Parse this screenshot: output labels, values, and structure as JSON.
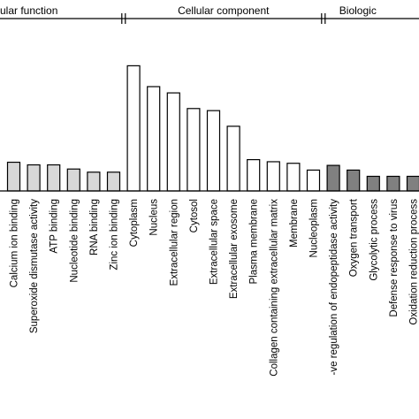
{
  "chart_data": {
    "type": "bar",
    "groups": [
      {
        "name": "ular function",
        "fill": "#d8d8d8",
        "categories": [
          "Calcium ion binding",
          "Superoxide dismutase activity",
          "ATP binding",
          "Nucleotide binding",
          "RNA binding",
          "Zinc ion binding"
        ],
        "values": [
          5.5,
          5.0,
          5.0,
          4.2,
          3.6,
          3.6
        ]
      },
      {
        "name": "Cellular component",
        "fill": "#ffffff",
        "categories": [
          "Cytoplasm",
          "Nucleus",
          "Extracellular region",
          "Cytosol",
          "Extracellular space",
          "Extracellular exosome",
          "Plasma membrane",
          "Collagen containing extracellular matrix",
          "Membrane",
          "Nucleoplasm"
        ],
        "values": [
          24.0,
          20.0,
          18.8,
          15.8,
          15.4,
          12.4,
          6.0,
          5.6,
          5.3,
          4.0
        ]
      },
      {
        "name": "Biologic",
        "fill": "#808080",
        "categories": [
          "-ve regulation of endopeptidase activity",
          "Oxygen transport",
          "Glycolytic process",
          "Defense response to virus",
          "Oxidation reduction process"
        ],
        "values": [
          4.9,
          4.0,
          2.8,
          2.8,
          2.8
        ]
      }
    ],
    "grid": false,
    "legend": "none"
  }
}
